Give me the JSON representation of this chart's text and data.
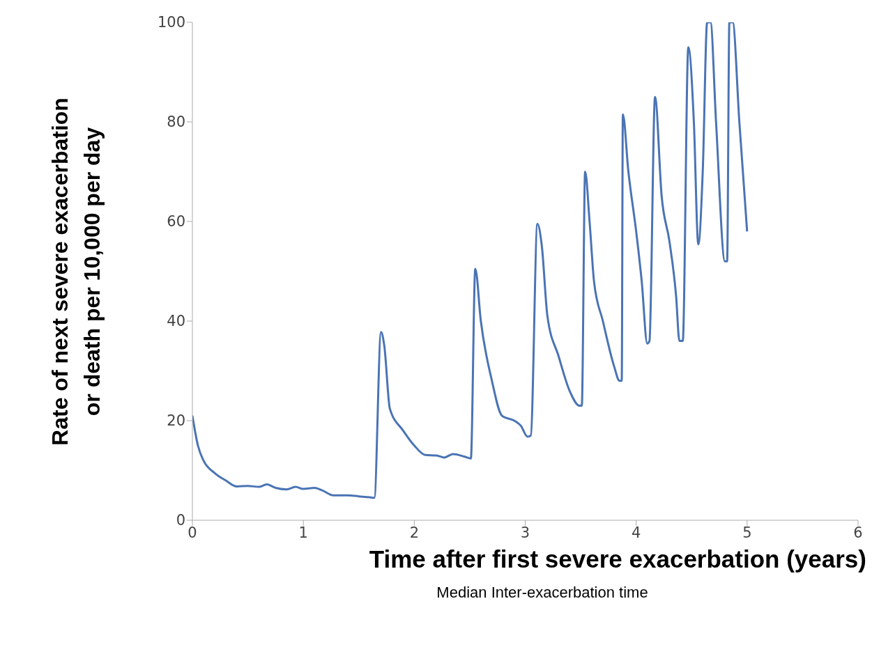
{
  "chart_data": {
    "type": "line",
    "xlabel": "Time after first severe exacerbation (years)",
    "ylabel": "Rate of next severe exacerbation or death per 10,000 per day",
    "annotations": [
      "Median Inter-exacerbation time"
    ],
    "xlim": [
      0,
      6
    ],
    "xticks": [
      0,
      1,
      2,
      3,
      4,
      5,
      6
    ],
    "ylim": [
      0,
      100
    ],
    "yticks": [
      0,
      20,
      40,
      60,
      80,
      100
    ],
    "marker": "none",
    "line_style": "solid",
    "series": [
      {
        "color": "#4a74b4",
        "x": [
          0,
          0.05,
          0.1,
          0.2,
          0.3,
          0.4,
          0.5,
          0.6,
          0.67,
          0.75,
          0.85,
          0.93,
          1.0,
          1.1,
          1.17,
          1.27,
          1.4,
          1.5,
          1.6,
          1.64,
          1.7,
          1.73,
          1.78,
          1.9,
          2.0,
          2.1,
          2.2,
          2.27,
          2.35,
          2.45,
          2.51,
          2.55,
          2.6,
          2.7,
          2.79,
          2.91,
          2.96,
          3.02,
          3.05,
          3.11,
          3.15,
          3.2,
          3.3,
          3.4,
          3.49,
          3.51,
          3.54,
          3.58,
          3.62,
          3.7,
          3.8,
          3.85,
          3.87,
          3.88,
          3.93,
          4.0,
          4.05,
          4.1,
          4.12,
          4.17,
          4.23,
          4.3,
          4.36,
          4.39,
          4.42,
          4.47,
          4.52,
          4.56,
          4.6,
          4.64,
          4.67,
          4.72,
          4.8,
          4.82,
          4.84,
          4.87,
          4.93,
          5.0
        ],
        "values": [
          21,
          15,
          12,
          9.5,
          8,
          6.8,
          6.9,
          6.7,
          7.2,
          6.5,
          6.2,
          6.7,
          6.3,
          6.5,
          6.0,
          5.0,
          5.0,
          4.8,
          4.6,
          4.5,
          37.8,
          35,
          22.4,
          18,
          15,
          13.1,
          13,
          12.6,
          13.3,
          12.8,
          12.4,
          50.5,
          40,
          28,
          21,
          19.9,
          19,
          16.8,
          17,
          59.5,
          55,
          41,
          33,
          26,
          23,
          23,
          70,
          60,
          48,
          40,
          31,
          28,
          28,
          81.5,
          70,
          58,
          48,
          35.5,
          36,
          85,
          65,
          56,
          45,
          36,
          36,
          95,
          80,
          55.4,
          70,
          100,
          100,
          80,
          52,
          52,
          100,
          100,
          80,
          58
        ]
      }
    ]
  }
}
